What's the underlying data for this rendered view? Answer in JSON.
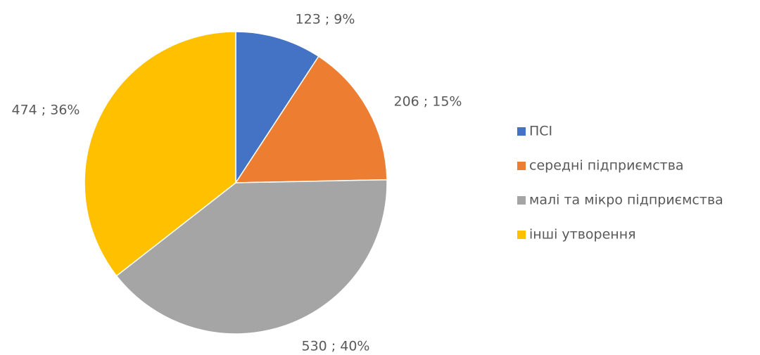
{
  "chart_data": {
    "type": "pie",
    "categories": [
      "ПСІ",
      "середні підприємства",
      "малі та мікро підприємства",
      "інші утворення"
    ],
    "values": [
      123,
      206,
      530,
      474
    ],
    "value_labels": [
      "123 ; 9%",
      "206 ; 15%",
      "530 ; 40%",
      "474 ; 36%"
    ],
    "colors": [
      "#4472c4",
      "#ed7d31",
      "#a5a5a5",
      "#ffc000"
    ],
    "legend": "right"
  }
}
